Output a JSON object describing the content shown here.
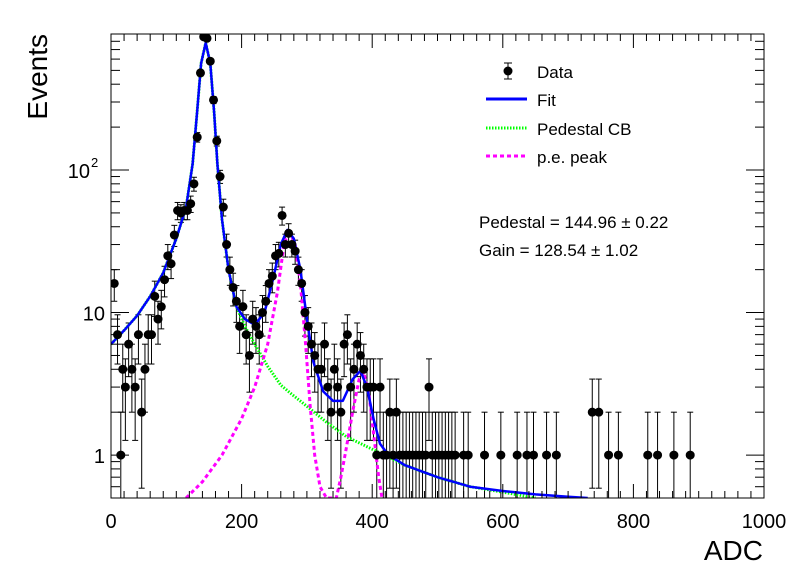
{
  "chart_data": {
    "type": "scatter",
    "title": "",
    "xlabel": "ADC",
    "ylabel": "Events",
    "xlim": [
      0,
      1000
    ],
    "ylim": [
      0.5,
      900
    ],
    "yscale": "log",
    "x_ticks": [
      0,
      200,
      400,
      600,
      800,
      1000
    ],
    "y_tick_labels": [
      {
        "value": 1,
        "label": "1"
      },
      {
        "value": 10,
        "label": "10"
      },
      {
        "value": 100,
        "label": "10",
        "exponent": "2"
      }
    ],
    "legend": {
      "placement": "top-right",
      "entries": [
        {
          "label": "Data",
          "marker": "dot-errorbar",
          "color": "#000000"
        },
        {
          "label": "Fit",
          "style": "solid",
          "color": "#0000ff"
        },
        {
          "label": "Pedestal CB",
          "style": "dotted",
          "color": "#00ff00"
        },
        {
          "label": "p.e. peak",
          "style": "dashed",
          "color": "#ff00ff"
        }
      ]
    },
    "annotations": [
      {
        "text": "Pedestal = 144.96 ± 0.22"
      },
      {
        "text": "Gain = 128.54 ± 1.02"
      }
    ],
    "series": [
      {
        "name": "Data",
        "type": "scatter",
        "color": "#000000",
        "points": [
          {
            "x": 5,
            "y": 16
          },
          {
            "x": 10,
            "y": 7
          },
          {
            "x": 15,
            "y": 1
          },
          {
            "x": 18,
            "y": 4
          },
          {
            "x": 22,
            "y": 3
          },
          {
            "x": 27,
            "y": 6
          },
          {
            "x": 32,
            "y": 4
          },
          {
            "x": 37,
            "y": 3
          },
          {
            "x": 42,
            "y": 7
          },
          {
            "x": 47,
            "y": 2
          },
          {
            "x": 52,
            "y": 4
          },
          {
            "x": 57,
            "y": 7
          },
          {
            "x": 62,
            "y": 7
          },
          {
            "x": 67,
            "y": 13
          },
          {
            "x": 72,
            "y": 9
          },
          {
            "x": 77,
            "y": 11
          },
          {
            "x": 82,
            "y": 17
          },
          {
            "x": 87,
            "y": 25
          },
          {
            "x": 92,
            "y": 22
          },
          {
            "x": 97,
            "y": 35
          },
          {
            "x": 102,
            "y": 52
          },
          {
            "x": 107,
            "y": 50
          },
          {
            "x": 112,
            "y": 52
          },
          {
            "x": 117,
            "y": 52
          },
          {
            "x": 122,
            "y": 58
          },
          {
            "x": 127,
            "y": 80
          },
          {
            "x": 132,
            "y": 170
          },
          {
            "x": 137,
            "y": 480
          },
          {
            "x": 142,
            "y": 860
          },
          {
            "x": 147,
            "y": 840
          },
          {
            "x": 152,
            "y": 580
          },
          {
            "x": 157,
            "y": 310
          },
          {
            "x": 162,
            "y": 160
          },
          {
            "x": 167,
            "y": 90
          },
          {
            "x": 172,
            "y": 55
          },
          {
            "x": 177,
            "y": 30
          },
          {
            "x": 182,
            "y": 20
          },
          {
            "x": 187,
            "y": 15
          },
          {
            "x": 192,
            "y": 12
          },
          {
            "x": 197,
            "y": 8
          },
          {
            "x": 202,
            "y": 11
          },
          {
            "x": 207,
            "y": 7
          },
          {
            "x": 212,
            "y": 5
          },
          {
            "x": 217,
            "y": 9
          },
          {
            "x": 222,
            "y": 8
          },
          {
            "x": 227,
            "y": 7
          },
          {
            "x": 232,
            "y": 10
          },
          {
            "x": 237,
            "y": 12
          },
          {
            "x": 242,
            "y": 16
          },
          {
            "x": 247,
            "y": 18
          },
          {
            "x": 252,
            "y": 25
          },
          {
            "x": 257,
            "y": 26
          },
          {
            "x": 262,
            "y": 48
          },
          {
            "x": 267,
            "y": 30
          },
          {
            "x": 272,
            "y": 36
          },
          {
            "x": 277,
            "y": 30
          },
          {
            "x": 282,
            "y": 27
          },
          {
            "x": 287,
            "y": 20
          },
          {
            "x": 292,
            "y": 16
          },
          {
            "x": 297,
            "y": 10
          },
          {
            "x": 302,
            "y": 8
          },
          {
            "x": 307,
            "y": 6
          },
          {
            "x": 312,
            "y": 5
          },
          {
            "x": 317,
            "y": 4
          },
          {
            "x": 322,
            "y": 4
          },
          {
            "x": 327,
            "y": 6
          },
          {
            "x": 332,
            "y": 3
          },
          {
            "x": 337,
            "y": 2
          },
          {
            "x": 342,
            "y": 4
          },
          {
            "x": 347,
            "y": 3
          },
          {
            "x": 352,
            "y": 2
          },
          {
            "x": 357,
            "y": 6
          },
          {
            "x": 362,
            "y": 7
          },
          {
            "x": 367,
            "y": 3
          },
          {
            "x": 372,
            "y": 4
          },
          {
            "x": 377,
            "y": 6
          },
          {
            "x": 382,
            "y": 5
          },
          {
            "x": 387,
            "y": 4
          },
          {
            "x": 392,
            "y": 3
          },
          {
            "x": 397,
            "y": 3
          },
          {
            "x": 402,
            "y": 3
          },
          {
            "x": 407,
            "y": 1
          },
          {
            "x": 412,
            "y": 3
          },
          {
            "x": 417,
            "y": 1
          },
          {
            "x": 422,
            "y": 1
          },
          {
            "x": 427,
            "y": 2
          },
          {
            "x": 432,
            "y": 1
          },
          {
            "x": 437,
            "y": 2
          },
          {
            "x": 442,
            "y": 1
          },
          {
            "x": 447,
            "y": 1
          },
          {
            "x": 452,
            "y": 1
          },
          {
            "x": 457,
            "y": 1
          },
          {
            "x": 462,
            "y": 1
          },
          {
            "x": 467,
            "y": 1
          },
          {
            "x": 472,
            "y": 1
          },
          {
            "x": 477,
            "y": 1
          },
          {
            "x": 482,
            "y": 1
          },
          {
            "x": 487,
            "y": 3
          },
          {
            "x": 492,
            "y": 1
          },
          {
            "x": 497,
            "y": 1
          },
          {
            "x": 502,
            "y": 1
          },
          {
            "x": 507,
            "y": 1
          },
          {
            "x": 512,
            "y": 1
          },
          {
            "x": 517,
            "y": 1
          },
          {
            "x": 522,
            "y": 1
          },
          {
            "x": 527,
            "y": 1
          },
          {
            "x": 540,
            "y": 1
          },
          {
            "x": 547,
            "y": 1
          },
          {
            "x": 572,
            "y": 1
          },
          {
            "x": 597,
            "y": 1
          },
          {
            "x": 622,
            "y": 1
          },
          {
            "x": 637,
            "y": 1
          },
          {
            "x": 647,
            "y": 1
          },
          {
            "x": 667,
            "y": 1
          },
          {
            "x": 682,
            "y": 1
          },
          {
            "x": 737,
            "y": 2
          },
          {
            "x": 747,
            "y": 2
          },
          {
            "x": 762,
            "y": 1
          },
          {
            "x": 777,
            "y": 1
          },
          {
            "x": 822,
            "y": 1
          },
          {
            "x": 837,
            "y": 1
          },
          {
            "x": 862,
            "y": 1
          },
          {
            "x": 887,
            "y": 1
          }
        ]
      },
      {
        "name": "Fit",
        "type": "line",
        "color": "#0000ff",
        "points": [
          {
            "x": 0,
            "y": 6
          },
          {
            "x": 20,
            "y": 7.5
          },
          {
            "x": 40,
            "y": 9.5
          },
          {
            "x": 60,
            "y": 13
          },
          {
            "x": 80,
            "y": 19
          },
          {
            "x": 100,
            "y": 33
          },
          {
            "x": 115,
            "y": 55
          },
          {
            "x": 125,
            "y": 110
          },
          {
            "x": 132,
            "y": 260
          },
          {
            "x": 138,
            "y": 560
          },
          {
            "x": 145,
            "y": 780
          },
          {
            "x": 152,
            "y": 560
          },
          {
            "x": 158,
            "y": 250
          },
          {
            "x": 163,
            "y": 110
          },
          {
            "x": 170,
            "y": 45
          },
          {
            "x": 180,
            "y": 20
          },
          {
            "x": 192,
            "y": 11
          },
          {
            "x": 205,
            "y": 9
          },
          {
            "x": 220,
            "y": 8.2
          },
          {
            "x": 235,
            "y": 10
          },
          {
            "x": 248,
            "y": 17
          },
          {
            "x": 260,
            "y": 30
          },
          {
            "x": 270,
            "y": 38
          },
          {
            "x": 280,
            "y": 33
          },
          {
            "x": 290,
            "y": 20
          },
          {
            "x": 300,
            "y": 9
          },
          {
            "x": 310,
            "y": 4.5
          },
          {
            "x": 325,
            "y": 2.8
          },
          {
            "x": 340,
            "y": 2.4
          },
          {
            "x": 355,
            "y": 2.4
          },
          {
            "x": 370,
            "y": 3.4
          },
          {
            "x": 382,
            "y": 3.9
          },
          {
            "x": 392,
            "y": 3
          },
          {
            "x": 402,
            "y": 1.8
          },
          {
            "x": 412,
            "y": 1.2
          },
          {
            "x": 425,
            "y": 1
          },
          {
            "x": 450,
            "y": 0.85
          },
          {
            "x": 500,
            "y": 0.7
          },
          {
            "x": 550,
            "y": 0.6
          },
          {
            "x": 600,
            "y": 0.56
          },
          {
            "x": 650,
            "y": 0.53
          },
          {
            "x": 700,
            "y": 0.51
          },
          {
            "x": 730,
            "y": 0.5
          }
        ]
      },
      {
        "name": "Pedestal CB",
        "type": "line",
        "color": "#00ff00",
        "points": [
          {
            "x": 0,
            "y": 6
          },
          {
            "x": 20,
            "y": 7.5
          },
          {
            "x": 40,
            "y": 9.5
          },
          {
            "x": 60,
            "y": 13
          },
          {
            "x": 80,
            "y": 19
          },
          {
            "x": 100,
            "y": 33
          },
          {
            "x": 115,
            "y": 55
          },
          {
            "x": 125,
            "y": 110
          },
          {
            "x": 132,
            "y": 260
          },
          {
            "x": 138,
            "y": 560
          },
          {
            "x": 145,
            "y": 780
          },
          {
            "x": 152,
            "y": 560
          },
          {
            "x": 158,
            "y": 250
          },
          {
            "x": 163,
            "y": 110
          },
          {
            "x": 170,
            "y": 45
          },
          {
            "x": 180,
            "y": 20
          },
          {
            "x": 192,
            "y": 11
          },
          {
            "x": 205,
            "y": 8
          },
          {
            "x": 220,
            "y": 6
          },
          {
            "x": 240,
            "y": 4.2
          },
          {
            "x": 260,
            "y": 3.1
          },
          {
            "x": 280,
            "y": 2.6
          },
          {
            "x": 300,
            "y": 2.2
          },
          {
            "x": 330,
            "y": 1.7
          },
          {
            "x": 360,
            "y": 1.35
          },
          {
            "x": 400,
            "y": 1.1
          },
          {
            "x": 450,
            "y": 0.85
          },
          {
            "x": 500,
            "y": 0.7
          },
          {
            "x": 550,
            "y": 0.6
          },
          {
            "x": 600,
            "y": 0.55
          },
          {
            "x": 650,
            "y": 0.5
          }
        ]
      },
      {
        "name": "p.e. peak",
        "type": "line",
        "color": "#ff00ff",
        "points": [
          {
            "x": 115,
            "y": 0.5
          },
          {
            "x": 140,
            "y": 0.65
          },
          {
            "x": 170,
            "y": 1.0
          },
          {
            "x": 200,
            "y": 1.8
          },
          {
            "x": 220,
            "y": 3
          },
          {
            "x": 240,
            "y": 6
          },
          {
            "x": 255,
            "y": 14
          },
          {
            "x": 265,
            "y": 30
          },
          {
            "x": 273,
            "y": 38
          },
          {
            "x": 282,
            "y": 30
          },
          {
            "x": 290,
            "y": 16
          },
          {
            "x": 298,
            "y": 6
          },
          {
            "x": 305,
            "y": 2.2
          },
          {
            "x": 312,
            "y": 1
          },
          {
            "x": 320,
            "y": 0.6
          },
          {
            "x": 330,
            "y": 0.5
          },
          {
            "x": 345,
            "y": 0.5
          },
          {
            "x": 352,
            "y": 0.7
          },
          {
            "x": 360,
            "y": 1.1
          },
          {
            "x": 370,
            "y": 2
          },
          {
            "x": 380,
            "y": 3.4
          },
          {
            "x": 387,
            "y": 3.8
          },
          {
            "x": 395,
            "y": 2.7
          },
          {
            "x": 403,
            "y": 1.3
          },
          {
            "x": 410,
            "y": 0.7
          },
          {
            "x": 415,
            "y": 0.5
          }
        ]
      }
    ]
  }
}
